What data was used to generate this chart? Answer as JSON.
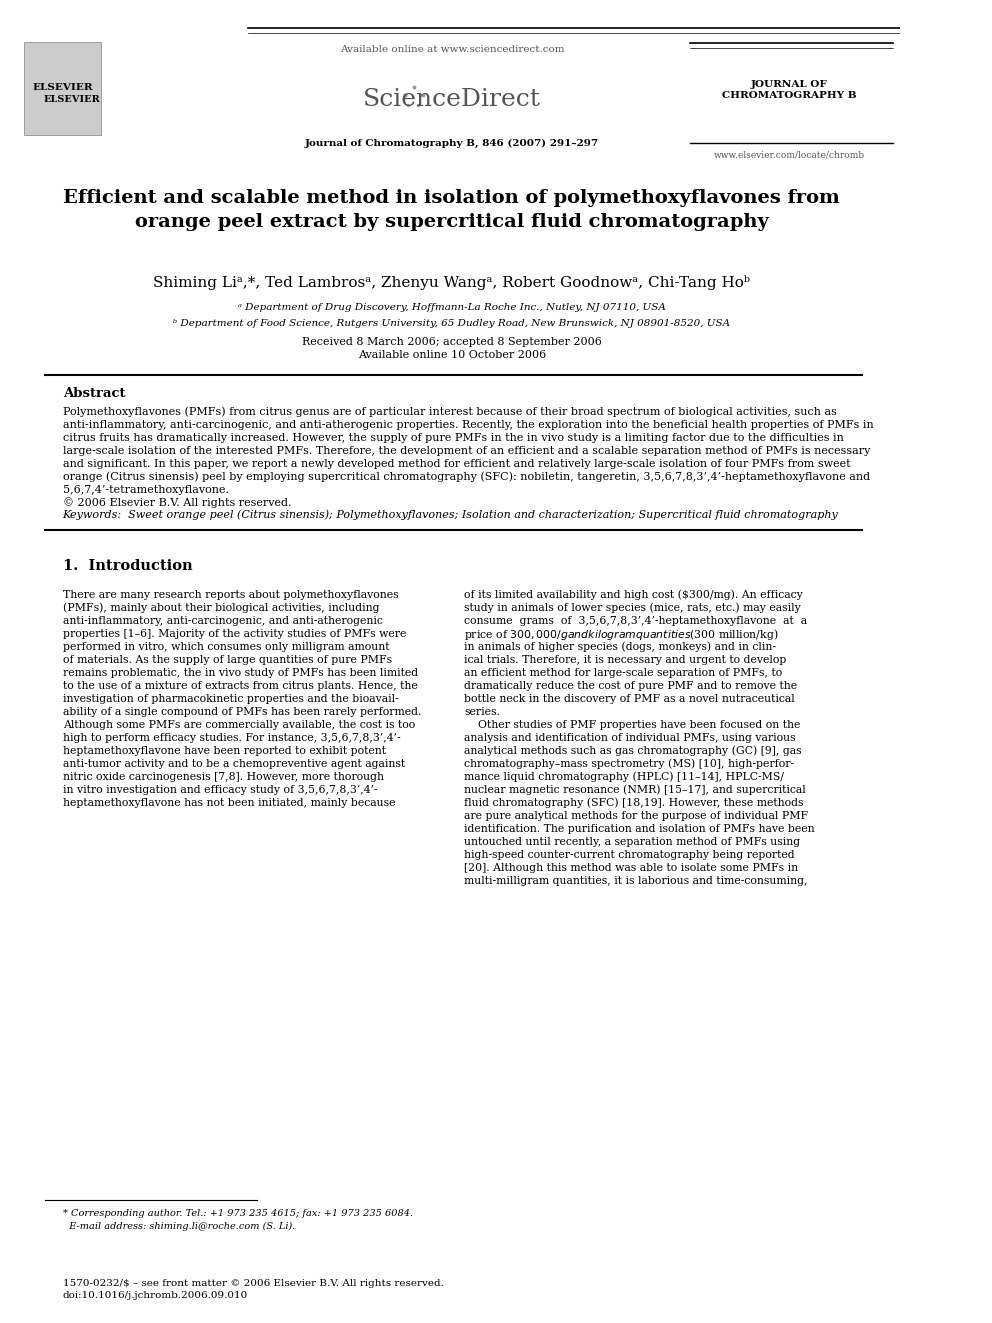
{
  "page_width": 9.92,
  "page_height": 13.23,
  "bg_color": "#ffffff",
  "header": {
    "available_online": "Available online at www.sciencedirect.com",
    "journal_name_top": "JOURNAL OF\nCHROMATOGRAPHY B",
    "journal_ref": "Journal of Chromatography B, 846 (2007) 291–297",
    "website": "www.elsevier.com/locate/chromb"
  },
  "title": "Efficient and scalable method in isolation of polymethoxyflavones from\norange peel extract by supercritical fluid chromatography",
  "authors": "Shiming Li ",
  "authors_full": "Shiming Li ᵃ,*, Ted Lambros ᵃ, Zhenyu Wang ᵃ, Robert Goodnow ᵃ, Chi-Tang Ho ᵇ",
  "affil_a": "ᵃ Department of Drug Discovery, Hoffmann-La Roche Inc., Nutley, NJ 07110, USA",
  "affil_b": "ᵇ Department of Food Science, Rutgers University, 65 Dudley Road, New Brunswick, NJ 08901-8520, USA",
  "received": "Received 8 March 2006; accepted 8 September 2006",
  "available": "Available online 10 October 2006",
  "abstract_title": "Abstract",
  "abstract_text": "Polymethoxyflavones (PMFs) from citrus genus are of particular interest because of their broad spectrum of biological activities, such as\nanti-inflammatory, anti-carcinogenic, and anti-atherogenic properties. Recently, the exploration into the beneficial health properties of PMFs in\ncitrus fruits has dramatically increased. However, the supply of pure PMFs in the in vivo study is a limiting factor due to the difficulties in\nlarge-scale isolation of the interested PMFs. Therefore, the development of an efficient and a scalable separation method of PMFs is necessary\nand significant. In this paper, we report a newly developed method for efficient and relatively large-scale isolation of four PMFs from sweet\norange (Citrus sinensis) peel by employing supercritical chromatography (SFC): nobiletin, tangeretin, 3,5,6,7,8,3’,4’-heptamethoxyflavone and\n5,6,7,4’-tetramethoxyflavone.",
  "copyright": "© 2006 Elsevier B.V. All rights reserved.",
  "keywords": "Keywords:  Sweet orange peel (Citrus sinensis); Polymethoxyflavones; Isolation and characterization; Supercritical fluid chromatography",
  "section1_title": "1.  Introduction",
  "intro_left": "There are many research reports about polymethoxyflavones\n(PMFs), mainly about their biological activities, including\nanti-inflammatory, anti-carcinogenic, and anti-atherogenic\nproperties [1–6]. Majority of the activity studies of PMFs were\nperformed in vitro, which consumes only milligram amount\nof materials. As the supply of large quantities of pure PMFs\nremains problematic, the in vivo study of PMFs has been limited\nto the use of a mixture of extracts from citrus plants. Hence, the\ninvestigation of pharmacokinetic properties and the bioavail-\nability of a single compound of PMFs has been rarely performed.\nAlthough some PMFs are commercially available, the cost is too\nhigh to perform efficacy studies. For instance, 3,5,6,7,8,3’,4’-\nheptamethoxyflavone have been reported to exhibit potent\nanti-tumor activity and to be a chemopreventive agent against\nnitric oxide carcinogenesis [7,8]. However, more thorough\nin vitro investigation and efficacy study of 3,5,6,7,8,3’,4’-\nheptamethoxyflavone has not been initiated, mainly because",
  "intro_right": "of its limited availability and high cost ($300/mg). An efficacy\nstudy in animals of lower species (mice, rats, etc.) may easily\nconsume  grams  of  3,5,6,7,8,3’,4’-heptamethoxyflavone  at  a\nprice of $300,000/g and kilogram quantities ($300 million/kg)\nin animals of higher species (dogs, monkeys) and in clin-\nical trials. Therefore, it is necessary and urgent to develop\nan efficient method for large-scale separation of PMFs, to\ndramatically reduce the cost of pure PMF and to remove the\nbottle neck in the discovery of PMF as a novel nutraceutical\nseries.\n    Other studies of PMF properties have been focused on the\nanalysis and identification of individual PMFs, using various\nanalytical methods such as gas chromatography (GC) [9], gas\nchromatography–mass spectrometry (MS) [10], high-perfor-\nmance liquid chromatography (HPLC) [11–14], HPLC-MS/\nnuclear magnetic resonance (NMR) [15–17], and supercritical\nfluid chromatography (SFC) [18,19]. However, these methods\nare pure analytical methods for the purpose of individual PMF\nidentification. The purification and isolation of PMFs have been\nuntouched until recently, a separation method of PMFs using\nhigh-speed counter-current chromatography being reported\n[20]. Although this method was able to isolate some PMFs in\nmulti-milligram quantities, it is laborious and time-consuming,",
  "footnote": "* Corresponding author. Tel.: +1 973 235 4615; fax: +1 973 235 6084.\n  E-mail address: shiming.li@roche.com (S. Li).",
  "footer": "1570-0232/$ – see front matter © 2006 Elsevier B.V. All rights reserved.\ndoi:10.1016/j.jchromb.2006.09.010"
}
